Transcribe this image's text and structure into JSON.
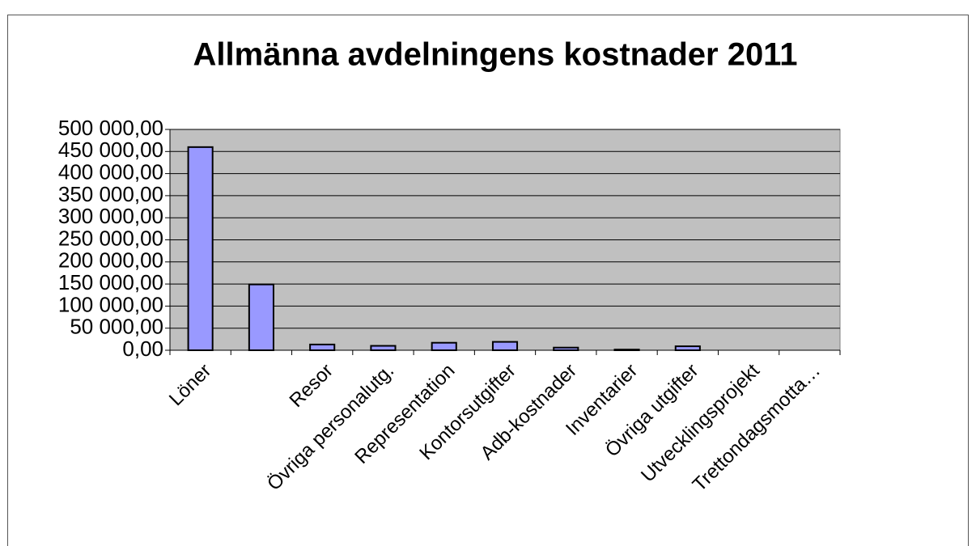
{
  "chart_data": {
    "type": "bar",
    "title": "Allmänna avdelningens kostnader 2011",
    "categories": [
      "Löner",
      null,
      "Resor",
      "Övriga personalutg.",
      "Representation",
      "Kontorsutgifter",
      "Adb-kostnader",
      "Inventarier",
      "Övriga utgifter",
      "Utvecklingsprojekt",
      "Trettondagsmotta…"
    ],
    "values": [
      460000,
      149000,
      13000,
      10000,
      17000,
      19000,
      6000,
      1500,
      9000,
      0,
      0
    ],
    "color": "#9999ff",
    "ylim": [
      0,
      500000
    ],
    "yticks": [
      {
        "value": 0,
        "label": "0,00"
      },
      {
        "value": 50000,
        "label": "50 000,00"
      },
      {
        "value": 100000,
        "label": "100 000,00"
      },
      {
        "value": 150000,
        "label": "150 000,00"
      },
      {
        "value": 200000,
        "label": "200 000,00"
      },
      {
        "value": 250000,
        "label": "250 000,00"
      },
      {
        "value": 300000,
        "label": "300 000,00"
      },
      {
        "value": 350000,
        "label": "350 000,00"
      },
      {
        "value": 400000,
        "label": "400 000,00"
      },
      {
        "value": 450000,
        "label": "450 000,00"
      },
      {
        "value": 500000,
        "label": "500 000,00"
      }
    ],
    "grid": true
  }
}
